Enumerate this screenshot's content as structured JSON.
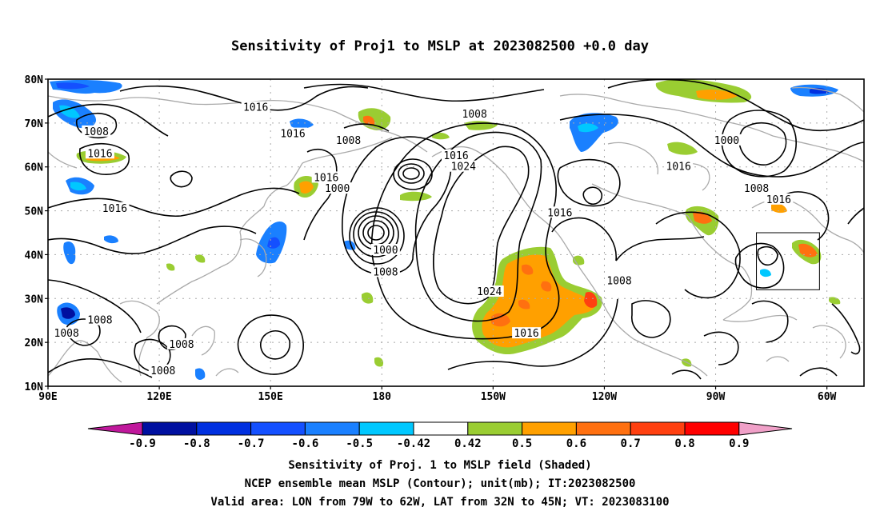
{
  "title": "Sensitivity of Proj1 to MSLP at 2023082500 +0.0 day",
  "map": {
    "lon_labels": [
      "90E",
      "120E",
      "150E",
      "180",
      "150W",
      "120W",
      "90W",
      "60W"
    ],
    "lat_labels": [
      "80N",
      "70N",
      "60N",
      "50N",
      "40N",
      "30N",
      "20N",
      "10N"
    ],
    "contour_labels": [
      {
        "text": "1016",
        "lon": 146,
        "lat": 73.5
      },
      {
        "text": "1008",
        "lon": 103,
        "lat": 68
      },
      {
        "text": "1016",
        "lon": 156,
        "lat": 67.5
      },
      {
        "text": "1008",
        "lon": 171,
        "lat": 66
      },
      {
        "text": "1008",
        "lon": -155,
        "lat": 72
      },
      {
        "text": "1016",
        "lon": 104,
        "lat": 63
      },
      {
        "text": "1016",
        "lon": -160,
        "lat": 62.5
      },
      {
        "text": "1024",
        "lon": -158,
        "lat": 60
      },
      {
        "text": "1000",
        "lon": -87,
        "lat": 66
      },
      {
        "text": "1016",
        "lon": -100,
        "lat": 60
      },
      {
        "text": "1016",
        "lon": 165,
        "lat": 57.5
      },
      {
        "text": "1000",
        "lon": 168,
        "lat": 55
      },
      {
        "text": "1016",
        "lon": 108,
        "lat": 50.5
      },
      {
        "text": "1008",
        "lon": -79,
        "lat": 55
      },
      {
        "text": "1016",
        "lon": -73,
        "lat": 52.5
      },
      {
        "text": "1016",
        "lon": -132,
        "lat": 49.5
      },
      {
        "text": "1000",
        "lon": -179,
        "lat": 41
      },
      {
        "text": "1008",
        "lon": -179,
        "lat": 36
      },
      {
        "text": "1008",
        "lon": -116,
        "lat": 34
      },
      {
        "text": "1024",
        "lon": -151,
        "lat": 31.5
      },
      {
        "text": "1008",
        "lon": 104,
        "lat": 25
      },
      {
        "text": "1016",
        "lon": -141,
        "lat": 22
      },
      {
        "text": "1008",
        "lon": 95,
        "lat": 22
      },
      {
        "text": "1008",
        "lon": 126,
        "lat": 19.5
      },
      {
        "text": "1008",
        "lon": 121,
        "lat": 13.5
      }
    ],
    "valid_box": {
      "lon_min": -79,
      "lon_max": -62,
      "lat_min": 32,
      "lat_max": 45
    },
    "colors": {
      "contour": "#000000",
      "coast": "#aaaaaa",
      "grid": "#aaaaaa"
    }
  },
  "colorbar": {
    "labels": [
      "-0.9",
      "-0.8",
      "-0.7",
      "-0.6",
      "-0.5",
      "-0.42",
      "0.42",
      "0.5",
      "0.6",
      "0.7",
      "0.8",
      "0.9"
    ],
    "left_arrow_color": "#c0189c",
    "right_arrow_color": "#f0a0c8",
    "colors": [
      "#0010a0",
      "#0030e0",
      "#1450ff",
      "#1a80ff",
      "#00c8ff",
      "#ffffff",
      "#9acd32",
      "#ffa000",
      "#ff7010",
      "#ff4010",
      "#ff0000"
    ]
  },
  "caption": {
    "line1": "Sensitivity of Proj. 1 to MSLP field (Shaded)",
    "line2": "NCEP ensemble mean MSLP (Contour); unit(mb); IT:2023082500",
    "line3": "Valid area: LON from 79W to 62W, LAT from 32N to 45N; VT: 2023083100"
  }
}
